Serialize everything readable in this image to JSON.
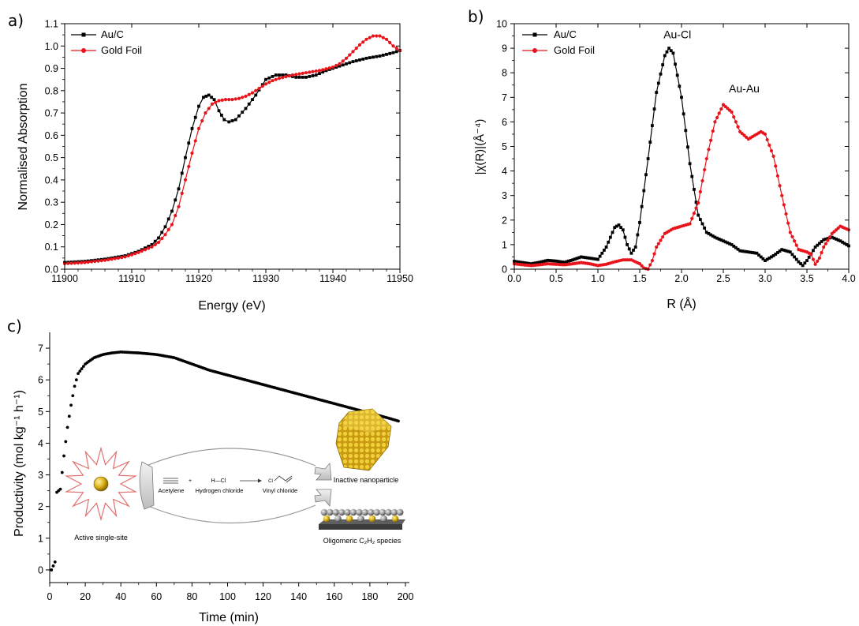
{
  "chart_data": [
    {
      "type": "line",
      "panel_label": "a)",
      "xlabel": "Energy (eV)",
      "ylabel": "Normalised Absorption",
      "xlim": [
        11900,
        11950
      ],
      "ylim": [
        0.0,
        1.1
      ],
      "xticks": [
        11900,
        11910,
        11920,
        11930,
        11940,
        11950
      ],
      "yticks": [
        0.0,
        0.1,
        0.2,
        0.3,
        0.4,
        0.5,
        0.6,
        0.7,
        0.8,
        0.9,
        1.0,
        1.1
      ],
      "legend_position": "top-left",
      "grid": false,
      "series": [
        {
          "name": "Au/C",
          "color": "#000000",
          "marker": "square",
          "points": [
            [
              11900,
              0.03
            ],
            [
              11903,
              0.035
            ],
            [
              11906,
              0.045
            ],
            [
              11909,
              0.06
            ],
            [
              11911,
              0.08
            ],
            [
              11913,
              0.11
            ],
            [
              11914,
              0.14
            ],
            [
              11915,
              0.19
            ],
            [
              11916,
              0.26
            ],
            [
              11917,
              0.36
            ],
            [
              11918,
              0.5
            ],
            [
              11919,
              0.63
            ],
            [
              11920,
              0.73
            ],
            [
              11920.7,
              0.77
            ],
            [
              11921.5,
              0.78
            ],
            [
              11922.3,
              0.76
            ],
            [
              11923,
              0.71
            ],
            [
              11923.8,
              0.67
            ],
            [
              11924.5,
              0.66
            ],
            [
              11925.5,
              0.67
            ],
            [
              11927,
              0.72
            ],
            [
              11928.5,
              0.78
            ],
            [
              11930,
              0.85
            ],
            [
              11931.5,
              0.87
            ],
            [
              11933,
              0.87
            ],
            [
              11934.5,
              0.86
            ],
            [
              11936,
              0.86
            ],
            [
              11937.5,
              0.87
            ],
            [
              11939,
              0.89
            ],
            [
              11941,
              0.91
            ],
            [
              11943,
              0.93
            ],
            [
              11945,
              0.945
            ],
            [
              11947,
              0.955
            ],
            [
              11949,
              0.97
            ],
            [
              11950,
              0.98
            ]
          ]
        },
        {
          "name": "Gold Foil",
          "color": "#e8141b",
          "marker": "circle",
          "points": [
            [
              11900,
              0.025
            ],
            [
              11903,
              0.03
            ],
            [
              11906,
              0.04
            ],
            [
              11909,
              0.055
            ],
            [
              11911,
              0.075
            ],
            [
              11913,
              0.1
            ],
            [
              11914,
              0.12
            ],
            [
              11915,
              0.155
            ],
            [
              11916,
              0.2
            ],
            [
              11917,
              0.28
            ],
            [
              11918,
              0.4
            ],
            [
              11919,
              0.52
            ],
            [
              11920,
              0.63
            ],
            [
              11921,
              0.7
            ],
            [
              11922,
              0.74
            ],
            [
              11923,
              0.755
            ],
            [
              11924,
              0.76
            ],
            [
              11925,
              0.76
            ],
            [
              11926,
              0.765
            ],
            [
              11927,
              0.775
            ],
            [
              11928,
              0.79
            ],
            [
              11929,
              0.81
            ],
            [
              11930,
              0.83
            ],
            [
              11931,
              0.845
            ],
            [
              11932,
              0.855
            ],
            [
              11934,
              0.87
            ],
            [
              11936,
              0.88
            ],
            [
              11938,
              0.89
            ],
            [
              11940,
              0.905
            ],
            [
              11941,
              0.92
            ],
            [
              11942,
              0.945
            ],
            [
              11943,
              0.975
            ],
            [
              11944,
              1.005
            ],
            [
              11945,
              1.03
            ],
            [
              11946,
              1.045
            ],
            [
              11947,
              1.045
            ],
            [
              11948,
              1.03
            ],
            [
              11949,
              1.0
            ],
            [
              11950,
              0.98
            ]
          ]
        }
      ]
    },
    {
      "type": "line",
      "panel_label": "b)",
      "xlabel": "R (Å)",
      "ylabel": "|χ(R)|(Å⁻⁴)",
      "xlim": [
        0.0,
        4.0
      ],
      "ylim": [
        0,
        10
      ],
      "xticks": [
        0.0,
        0.5,
        1.0,
        1.5,
        2.0,
        2.5,
        3.0,
        3.5,
        4.0
      ],
      "yticks": [
        0,
        1,
        2,
        3,
        4,
        5,
        6,
        7,
        8,
        9,
        10
      ],
      "legend_position": "top-left",
      "grid": false,
      "annotations": [
        {
          "text": "Au-Cl",
          "x": 1.95,
          "y": 9.4
        },
        {
          "text": "Au-Au",
          "x": 2.75,
          "y": 7.2
        }
      ],
      "series": [
        {
          "name": "Au/C",
          "color": "#000000",
          "marker": "square",
          "points": [
            [
              0.0,
              0.32
            ],
            [
              0.1,
              0.27
            ],
            [
              0.2,
              0.22
            ],
            [
              0.3,
              0.28
            ],
            [
              0.4,
              0.36
            ],
            [
              0.5,
              0.33
            ],
            [
              0.6,
              0.28
            ],
            [
              0.7,
              0.38
            ],
            [
              0.8,
              0.5
            ],
            [
              0.9,
              0.45
            ],
            [
              1.0,
              0.4
            ],
            [
              1.1,
              0.9
            ],
            [
              1.2,
              1.7
            ],
            [
              1.25,
              1.8
            ],
            [
              1.3,
              1.6
            ],
            [
              1.35,
              1.0
            ],
            [
              1.4,
              0.65
            ],
            [
              1.45,
              0.9
            ],
            [
              1.5,
              1.9
            ],
            [
              1.6,
              4.5
            ],
            [
              1.7,
              7.2
            ],
            [
              1.8,
              8.7
            ],
            [
              1.85,
              9.0
            ],
            [
              1.9,
              8.8
            ],
            [
              2.0,
              7.0
            ],
            [
              2.1,
              4.3
            ],
            [
              2.2,
              2.2
            ],
            [
              2.3,
              1.5
            ],
            [
              2.4,
              1.3
            ],
            [
              2.5,
              1.15
            ],
            [
              2.6,
              1.0
            ],
            [
              2.7,
              0.75
            ],
            [
              2.8,
              0.7
            ],
            [
              2.9,
              0.65
            ],
            [
              3.0,
              0.35
            ],
            [
              3.1,
              0.55
            ],
            [
              3.2,
              0.8
            ],
            [
              3.3,
              0.7
            ],
            [
              3.4,
              0.3
            ],
            [
              3.45,
              0.15
            ],
            [
              3.5,
              0.35
            ],
            [
              3.6,
              0.9
            ],
            [
              3.7,
              1.2
            ],
            [
              3.8,
              1.3
            ],
            [
              3.9,
              1.15
            ],
            [
              4.0,
              0.95
            ]
          ]
        },
        {
          "name": "Gold Foil",
          "color": "#e8141b",
          "marker": "circle",
          "points": [
            [
              0.0,
              0.22
            ],
            [
              0.1,
              0.18
            ],
            [
              0.2,
              0.15
            ],
            [
              0.3,
              0.18
            ],
            [
              0.4,
              0.22
            ],
            [
              0.5,
              0.2
            ],
            [
              0.6,
              0.18
            ],
            [
              0.7,
              0.22
            ],
            [
              0.8,
              0.27
            ],
            [
              0.9,
              0.22
            ],
            [
              1.0,
              0.15
            ],
            [
              1.1,
              0.2
            ],
            [
              1.2,
              0.3
            ],
            [
              1.3,
              0.38
            ],
            [
              1.4,
              0.38
            ],
            [
              1.5,
              0.22
            ],
            [
              1.55,
              0.05
            ],
            [
              1.6,
              0.0
            ],
            [
              1.65,
              0.35
            ],
            [
              1.7,
              0.9
            ],
            [
              1.8,
              1.45
            ],
            [
              1.9,
              1.65
            ],
            [
              2.0,
              1.75
            ],
            [
              2.1,
              1.85
            ],
            [
              2.2,
              2.7
            ],
            [
              2.3,
              4.5
            ],
            [
              2.4,
              6.0
            ],
            [
              2.5,
              6.7
            ],
            [
              2.6,
              6.4
            ],
            [
              2.7,
              5.6
            ],
            [
              2.8,
              5.3
            ],
            [
              2.9,
              5.5
            ],
            [
              2.95,
              5.6
            ],
            [
              3.0,
              5.5
            ],
            [
              3.1,
              4.6
            ],
            [
              3.2,
              3.0
            ],
            [
              3.3,
              1.5
            ],
            [
              3.4,
              0.8
            ],
            [
              3.5,
              0.7
            ],
            [
              3.55,
              0.6
            ],
            [
              3.6,
              0.2
            ],
            [
              3.65,
              0.45
            ],
            [
              3.7,
              0.9
            ],
            [
              3.8,
              1.45
            ],
            [
              3.9,
              1.75
            ],
            [
              4.0,
              1.6
            ]
          ]
        }
      ]
    },
    {
      "type": "scatter",
      "panel_label": "c)",
      "xlabel": "Time (min)",
      "ylabel": "Productivity (mol kg⁻¹ h⁻¹)",
      "xlim": [
        0,
        200
      ],
      "ylim": [
        -0.4,
        7.5
      ],
      "xticks": [
        0,
        20,
        40,
        60,
        80,
        100,
        120,
        140,
        160,
        180,
        200
      ],
      "yticks": [
        0,
        1,
        2,
        3,
        4,
        5,
        6,
        7
      ],
      "grid": false,
      "series": [
        {
          "name": "",
          "color": "#000000",
          "points": [
            [
              1,
              0
            ],
            [
              3,
              0.25
            ],
            [
              4,
              2.45
            ],
            [
              6,
              2.55
            ],
            [
              8,
              3.6
            ],
            [
              10,
              4.5
            ],
            [
              12,
              5.2
            ],
            [
              14,
              5.8
            ],
            [
              16,
              6.2
            ],
            [
              20,
              6.5
            ],
            [
              25,
              6.7
            ],
            [
              30,
              6.8
            ],
            [
              35,
              6.85
            ],
            [
              40,
              6.88
            ],
            [
              50,
              6.85
            ],
            [
              60,
              6.8
            ],
            [
              70,
              6.7
            ],
            [
              80,
              6.5
            ],
            [
              90,
              6.3
            ],
            [
              100,
              6.15
            ],
            [
              110,
              6.0
            ],
            [
              120,
              5.85
            ],
            [
              130,
              5.7
            ],
            [
              140,
              5.55
            ],
            [
              150,
              5.4
            ],
            [
              160,
              5.25
            ],
            [
              170,
              5.1
            ],
            [
              180,
              4.95
            ],
            [
              190,
              4.8
            ],
            [
              196,
              4.7
            ]
          ]
        }
      ],
      "inset": {
        "left_caption": "Active single-site",
        "reactant_1": "Acetylene",
        "plus": "+",
        "reactant_2": "Hydrogen chloride",
        "reactant_2_formula": "H—Cl",
        "product": "Vinyl chloride",
        "product_atom": "Cl",
        "top_right_caption": "Inactive nanoparticle",
        "bottom_right_caption": "Oligomeric C₂H₂ species"
      }
    }
  ]
}
